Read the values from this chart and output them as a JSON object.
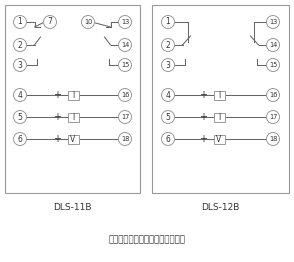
{
  "background": "#ffffff",
  "border_color": "#999999",
  "line_color": "#666666",
  "circle_ec": "#999999",
  "text_color": "#333333",
  "title1": "DLS-11B",
  "title2": "DLS-12B",
  "note": "注：触点处在跳闸位置时的接线图",
  "fig_width": 2.94,
  "fig_height": 2.62,
  "dpi": 100,
  "circle_r": 6.5,
  "lw": 0.75
}
